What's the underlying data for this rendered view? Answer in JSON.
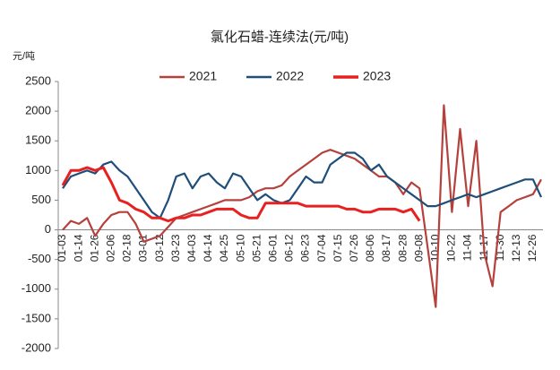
{
  "chart_data": {
    "type": "line",
    "title": "氯化石蜡-连续法(元/吨)",
    "y_label": "元/吨",
    "categories": [
      "01-03",
      null,
      "01-14",
      null,
      "01-26",
      null,
      "02-06",
      null,
      "02-18",
      null,
      "03-01",
      null,
      "03-12",
      null,
      "03-23",
      null,
      "04-03",
      null,
      "04-14",
      null,
      "04-25",
      null,
      "05-10",
      null,
      "05-21",
      null,
      "06-01",
      null,
      "06-12",
      null,
      "06-23",
      null,
      "07-04",
      null,
      "07-15",
      null,
      "07-26",
      null,
      "08-06",
      null,
      "08-17",
      null,
      "08-28",
      null,
      "09-08",
      null,
      "10-10",
      null,
      "10-22",
      null,
      "11-04",
      null,
      "11-17",
      null,
      "11-30",
      null,
      "12-13",
      null,
      "12-26",
      null
    ],
    "series": [
      {
        "name": "2021",
        "color": "#b5413c",
        "values": [
          0,
          150,
          100,
          200,
          -100,
          100,
          250,
          300,
          300,
          100,
          -200,
          -150,
          -100,
          50,
          200,
          250,
          300,
          350,
          400,
          450,
          500,
          500,
          500,
          550,
          650,
          700,
          700,
          750,
          900,
          1000,
          1100,
          1200,
          1300,
          1350,
          1300,
          1250,
          1200,
          1100,
          1000,
          900,
          900,
          800,
          600,
          800,
          700,
          -300,
          -1300,
          2100,
          300,
          1700,
          400,
          1500,
          -400,
          -950,
          300,
          400,
          500,
          550,
          600,
          850
        ]
      },
      {
        "name": "2022",
        "color": "#1f4e79",
        "values": [
          700,
          900,
          950,
          1000,
          950,
          1100,
          1150,
          1000,
          900,
          700,
          500,
          300,
          200,
          500,
          900,
          950,
          700,
          900,
          950,
          800,
          700,
          950,
          900,
          700,
          500,
          600,
          500,
          450,
          500,
          700,
          900,
          800,
          800,
          1100,
          1200,
          1300,
          1300,
          1200,
          1000,
          1100,
          900,
          800,
          700,
          600,
          500,
          400,
          400,
          450,
          500,
          550,
          600,
          550,
          600,
          650,
          700,
          750,
          800,
          850,
          850,
          550
        ]
      },
      {
        "name": "2023",
        "color": "#e8201f",
        "values": [
          750,
          1000,
          1000,
          1050,
          1000,
          1050,
          800,
          500,
          450,
          350,
          300,
          200,
          200,
          150,
          200,
          200,
          250,
          250,
          300,
          350,
          350,
          350,
          250,
          200,
          200,
          450,
          450,
          450,
          450,
          450,
          400,
          400,
          400,
          400,
          400,
          350,
          350,
          300,
          300,
          350,
          350,
          350,
          300,
          350,
          150,
          null,
          null,
          null,
          null,
          null,
          null,
          null,
          null,
          null,
          null,
          null,
          null,
          null,
          null,
          null
        ]
      }
    ],
    "ylim": [
      -2000,
      2500
    ],
    "yticks": [
      -2000,
      -1500,
      -1000,
      -500,
      0,
      500,
      1000,
      1500,
      2000,
      2500
    ]
  }
}
